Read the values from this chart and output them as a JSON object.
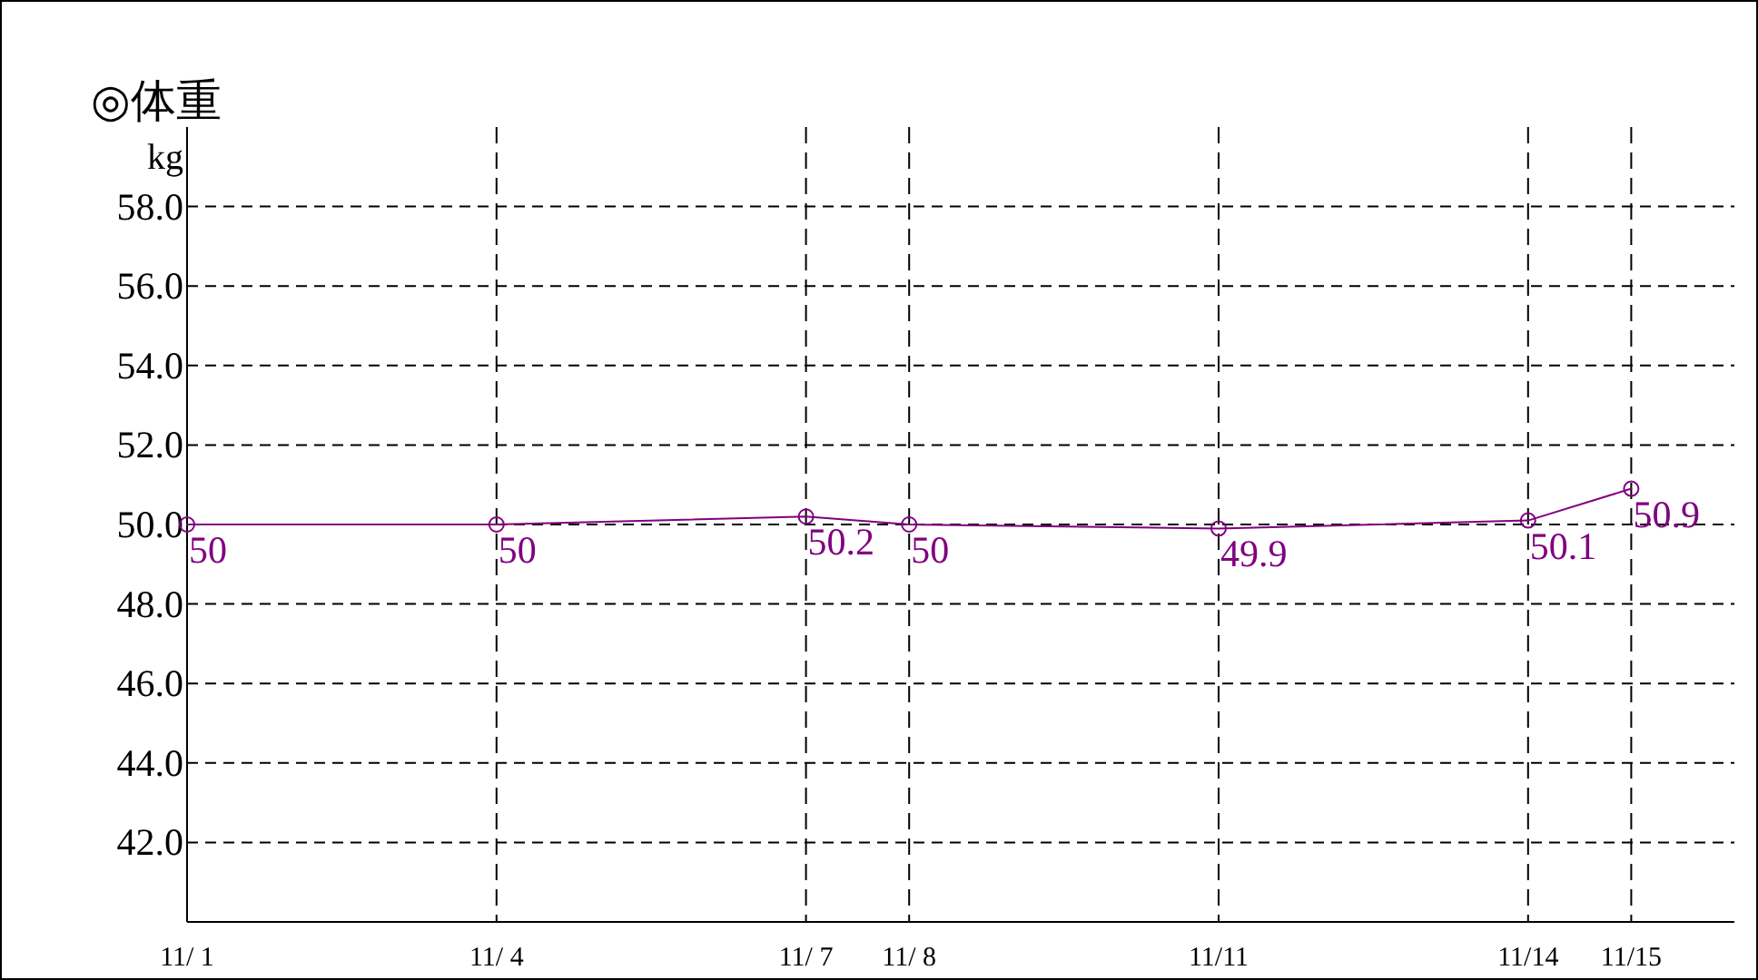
{
  "chart_data": {
    "type": "line",
    "title": "◎体重",
    "ylabel": "kg",
    "x": [
      "--11-01",
      "--11-04",
      "--11-07",
      "--11-08",
      "--11-11",
      "--11-14",
      "--11-15"
    ],
    "series": [
      {
        "color": "#800080",
        "values": [
          50,
          50,
          50.2,
          50,
          49.9,
          50.1,
          50.9
        ]
      }
    ],
    "xlim": [
      "--11-01",
      "--11-16"
    ],
    "xticks": [
      {
        "value": "--11-01",
        "label": "11/ 1"
      },
      {
        "value": "--11-04",
        "label": "11/ 4"
      },
      {
        "value": "--11-07",
        "label": "11/ 7"
      },
      {
        "value": "--11-08",
        "label": "11/ 8"
      },
      {
        "value": "--11-11",
        "label": "11/11"
      },
      {
        "value": "--11-14",
        "label": "11/14"
      },
      {
        "value": "--11-15",
        "label": "11/15"
      }
    ],
    "ylim": [
      40,
      60
    ],
    "yticks": [
      {
        "value": 42,
        "label": "42.0"
      },
      {
        "value": 44,
        "label": "44.0"
      },
      {
        "value": 46,
        "label": "46.0"
      },
      {
        "value": 48,
        "label": "48.0"
      },
      {
        "value": 50,
        "label": "50.0"
      },
      {
        "value": 52,
        "label": "52.0"
      },
      {
        "value": 54,
        "label": "54.0"
      },
      {
        "value": 56,
        "label": "56.0"
      },
      {
        "value": 58,
        "label": "58.0"
      }
    ],
    "grid": true,
    "marker": "circle",
    "line_style": "solid",
    "data_labels": true
  }
}
